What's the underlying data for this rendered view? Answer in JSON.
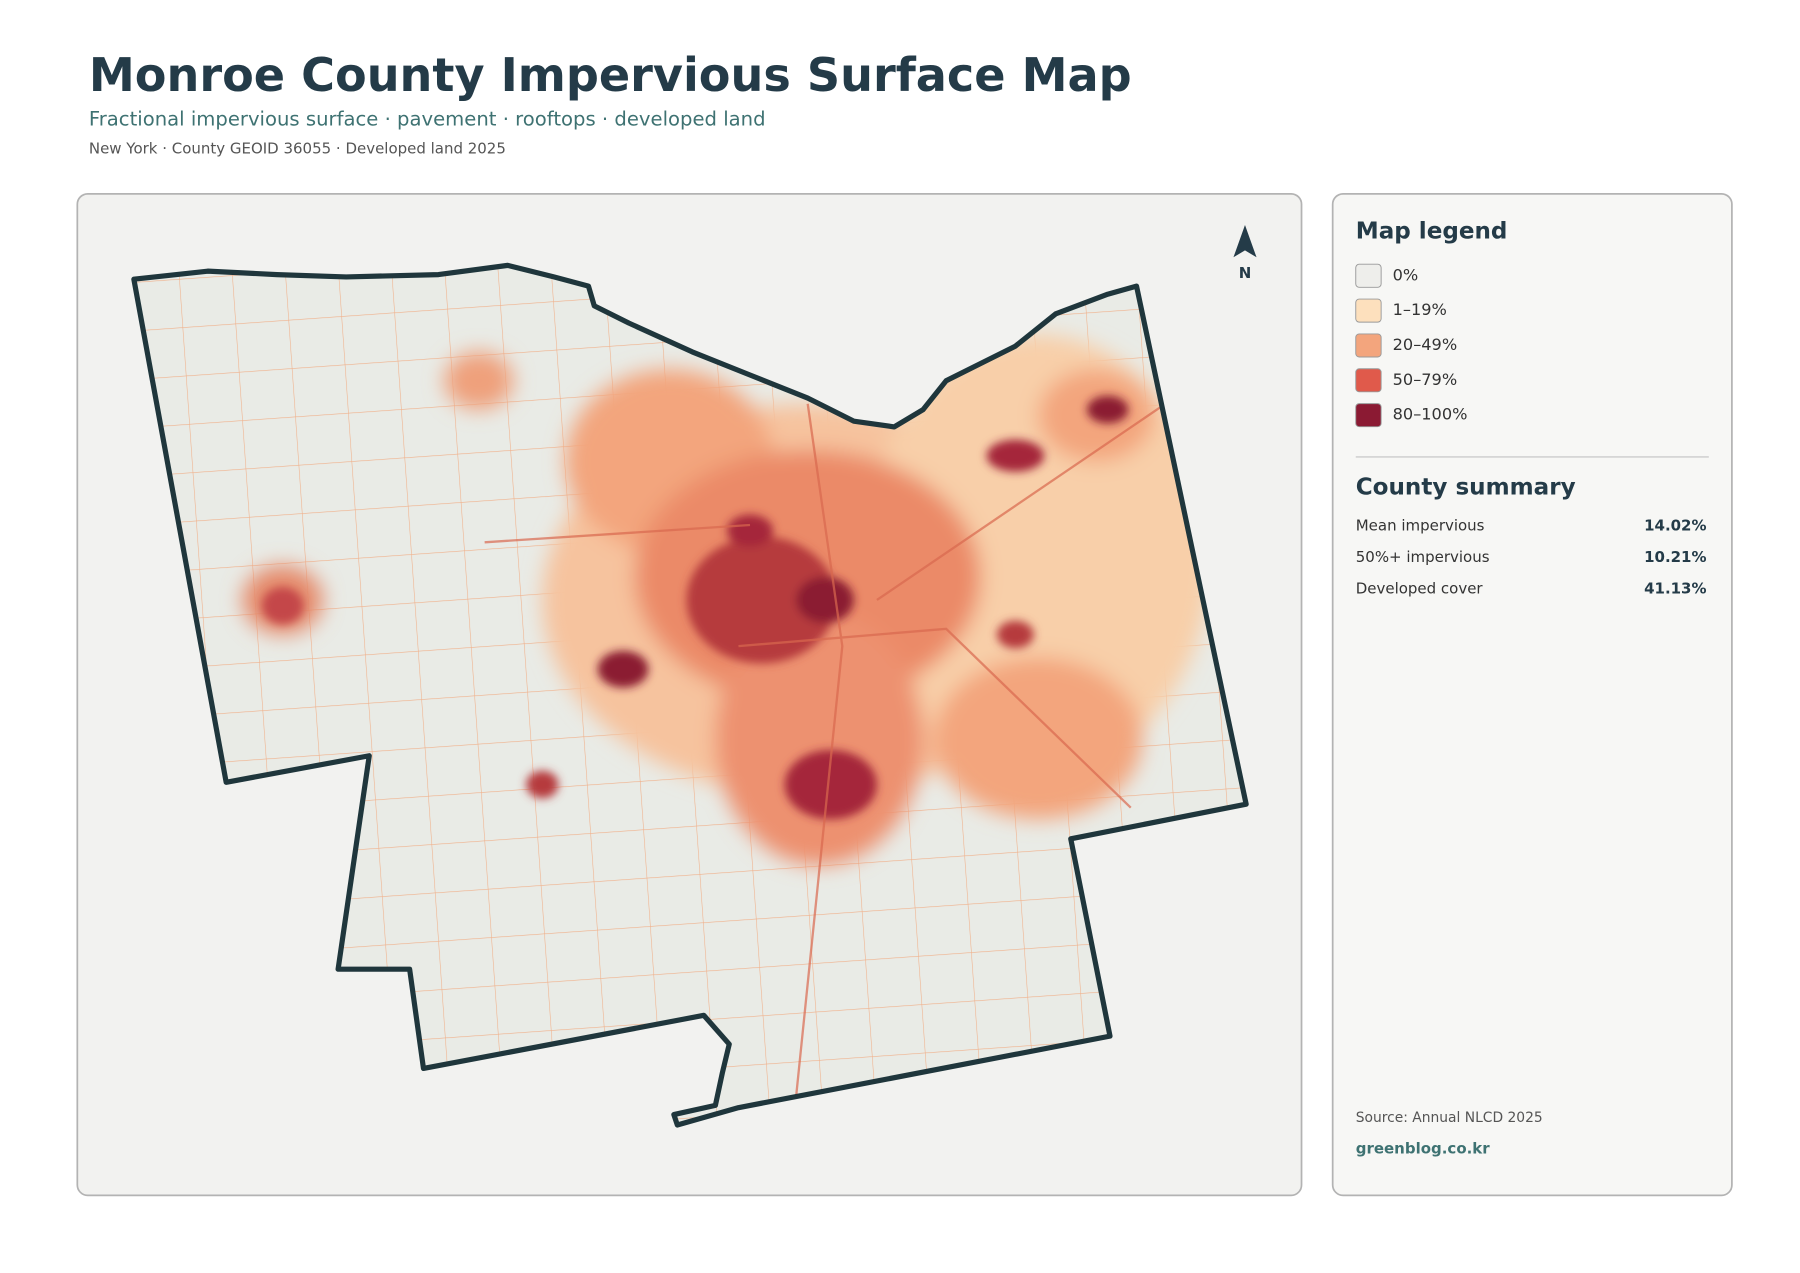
{
  "header": {
    "title": "Monroe County Impervious Surface Map",
    "subtitle": "Fractional impervious surface · pavement · rooftops · developed land",
    "meta": "New York · County GEOID 36055 · Developed land 2025"
  },
  "map": {
    "north_label": "N"
  },
  "legend": {
    "title": "Map legend",
    "items": [
      {
        "label": "0%",
        "color": "#eeeeeb"
      },
      {
        "label": "1–19%",
        "color": "#fde0bd"
      },
      {
        "label": "20–49%",
        "color": "#f3a57d"
      },
      {
        "label": "50–79%",
        "color": "#e05a4b"
      },
      {
        "label": "80–100%",
        "color": "#8b1a33"
      }
    ]
  },
  "summary": {
    "title": "County summary",
    "rows": [
      {
        "label": "Mean impervious",
        "value": "14.02%"
      },
      {
        "label": "50%+ impervious",
        "value": "10.21%"
      },
      {
        "label": "Developed cover",
        "value": "41.13%"
      }
    ]
  },
  "footer": {
    "source": "Source: Annual NLCD 2025",
    "site": "greenblog.co.kr"
  }
}
